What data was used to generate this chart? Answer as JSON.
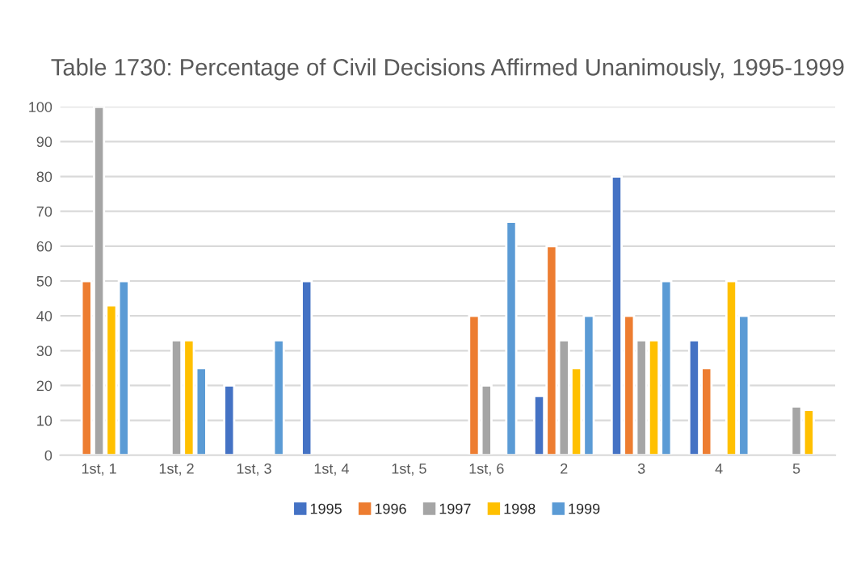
{
  "chart_data": {
    "type": "bar",
    "title": "Table 1730: Percentage of Civil Decisions Affirmed Unanimously, 1995-1999",
    "categories": [
      "1st, 1",
      "1st, 2",
      "1st, 3",
      "1st, 4",
      "1st, 5",
      "1st, 6",
      "2",
      "3",
      "4",
      "5"
    ],
    "series": [
      {
        "name": "1995",
        "color": "#4472c4",
        "values": [
          null,
          null,
          20,
          50,
          null,
          null,
          17,
          80,
          33,
          null
        ]
      },
      {
        "name": "1996",
        "color": "#ed7d31",
        "values": [
          50,
          null,
          null,
          null,
          null,
          40,
          60,
          40,
          25,
          null
        ]
      },
      {
        "name": "1997",
        "color": "#a5a5a5",
        "values": [
          100,
          33,
          null,
          null,
          null,
          20,
          33,
          33,
          null,
          14
        ]
      },
      {
        "name": "1998",
        "color": "#ffc000",
        "values": [
          43,
          33,
          null,
          null,
          null,
          null,
          25,
          33,
          50,
          13
        ]
      },
      {
        "name": "1999",
        "color": "#5b9bd5",
        "values": [
          50,
          25,
          33,
          null,
          null,
          67,
          40,
          50,
          40,
          null
        ]
      }
    ],
    "ylim": [
      0,
      100
    ],
    "yticks": [
      0,
      10,
      20,
      30,
      40,
      50,
      60,
      70,
      80,
      90,
      100
    ],
    "grid": "y",
    "legend": "bottom"
  }
}
